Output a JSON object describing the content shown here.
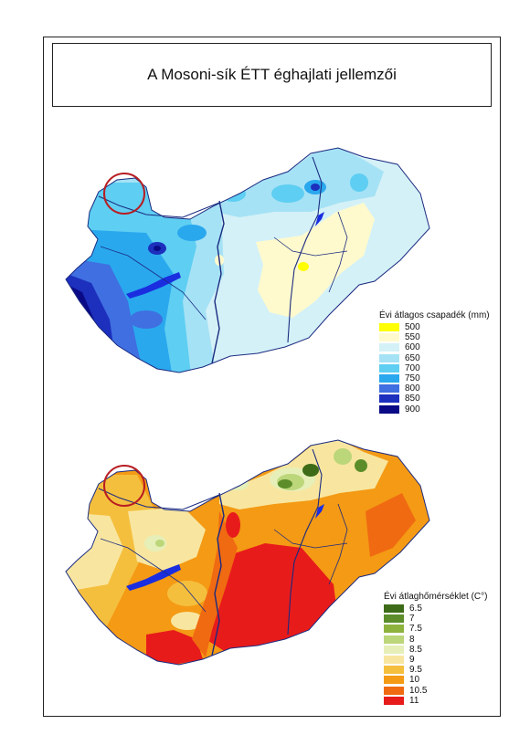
{
  "title": "A Mosoni-sík ÉTT éghajlati jellemzői",
  "precip_legend": {
    "title": "Évi átlagos csapadék (mm)",
    "items": [
      {
        "label": "500",
        "color": "#ffff00"
      },
      {
        "label": "550",
        "color": "#fffacd"
      },
      {
        "label": "600",
        "color": "#d4f1f7"
      },
      {
        "label": "650",
        "color": "#a5e2f5"
      },
      {
        "label": "700",
        "color": "#5ecef2"
      },
      {
        "label": "750",
        "color": "#2aa8ee"
      },
      {
        "label": "800",
        "color": "#3f6fe0"
      },
      {
        "label": "850",
        "color": "#1c2fbd"
      },
      {
        "label": "900",
        "color": "#0a0a86"
      }
    ]
  },
  "temp_legend": {
    "title": "Évi átlaghőmérséklet (C°)",
    "items": [
      {
        "label": "6.5",
        "color": "#3d6b18"
      },
      {
        "label": "7",
        "color": "#5c8d2a"
      },
      {
        "label": "7.5",
        "color": "#8db33e"
      },
      {
        "label": "8",
        "color": "#bcd67a"
      },
      {
        "label": "8.5",
        "color": "#e6efb8"
      },
      {
        "label": "9",
        "color": "#f8e6a0"
      },
      {
        "label": "9.5",
        "color": "#f5bf3e"
      },
      {
        "label": "10",
        "color": "#f49a14"
      },
      {
        "label": "10.5",
        "color": "#f06a12"
      },
      {
        "label": "11",
        "color": "#e81b1b"
      }
    ]
  },
  "colors": {
    "river": "#1a2a80",
    "lake": "#1a2ee0",
    "highlight_circle": "#b81d22"
  }
}
